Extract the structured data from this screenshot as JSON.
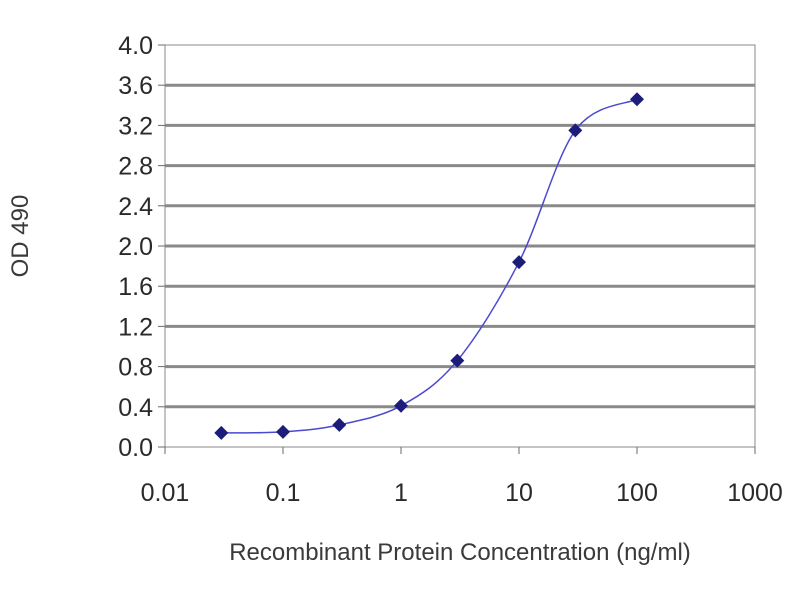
{
  "chart_data": {
    "type": "line",
    "title": "",
    "xlabel": "Recombinant Protein Concentration (ng/ml)",
    "ylabel": "OD 490",
    "x_scale": "log",
    "xlim": [
      0.01,
      1000
    ],
    "ylim": [
      0.0,
      4.0
    ],
    "x_ticks": [
      "0.01",
      "0.1",
      "1",
      "10",
      "100",
      "1000"
    ],
    "y_ticks": [
      "0.0",
      "0.4",
      "0.8",
      "1.2",
      "1.6",
      "2.0",
      "2.4",
      "2.8",
      "3.2",
      "3.6",
      "4.0"
    ],
    "grid": "horizontal",
    "series": [
      {
        "x": [
          0.03,
          0.1,
          0.3,
          1,
          3,
          10,
          30,
          100
        ],
        "y": [
          0.14,
          0.15,
          0.22,
          0.41,
          0.86,
          1.84,
          3.15,
          3.46
        ],
        "color": "#1c1c7a",
        "line_color": "#4a4acf"
      }
    ]
  }
}
